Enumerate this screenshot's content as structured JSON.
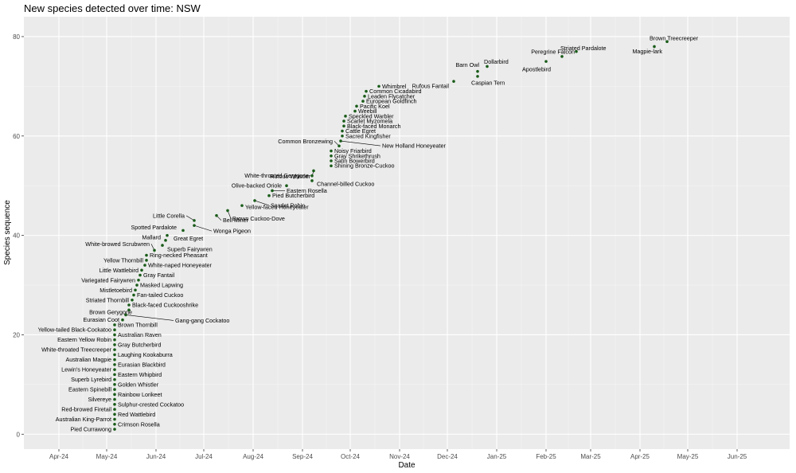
{
  "chart_data": {
    "type": "scatter",
    "title": "New species detected over time: NSW",
    "xlabel": "Date",
    "ylabel": "Species sequence",
    "xlim": [
      "2024-03-10",
      "2025-07-04"
    ],
    "ylim": [
      -3,
      84
    ],
    "x_ticks": [
      {
        "date": "2024-04-01",
        "label": "Apr-24"
      },
      {
        "date": "2024-05-01",
        "label": "May-24"
      },
      {
        "date": "2024-06-01",
        "label": "Jun-24"
      },
      {
        "date": "2024-07-01",
        "label": "Jul-24"
      },
      {
        "date": "2024-08-01",
        "label": "Aug-24"
      },
      {
        "date": "2024-09-01",
        "label": "Sep-24"
      },
      {
        "date": "2024-10-01",
        "label": "Oct-24"
      },
      {
        "date": "2024-11-01",
        "label": "Nov-24"
      },
      {
        "date": "2024-12-01",
        "label": "Dec-24"
      },
      {
        "date": "2025-01-01",
        "label": "Jan-25"
      },
      {
        "date": "2025-02-01",
        "label": "Feb-25"
      },
      {
        "date": "2025-03-01",
        "label": "Mar-25"
      },
      {
        "date": "2025-04-01",
        "label": "Apr-25"
      },
      {
        "date": "2025-05-01",
        "label": "May-25"
      },
      {
        "date": "2025-06-01",
        "label": "Jun-25"
      }
    ],
    "y_ticks": [
      0,
      20,
      40,
      60,
      80
    ],
    "grid": true,
    "point_color": "#1a5c1a",
    "panel_color": "#ebebeb",
    "points": [
      {
        "date": "2024-05-06",
        "y": 1,
        "label": "Pied Currawong"
      },
      {
        "date": "2024-05-06",
        "y": 2,
        "label": "Crimson Rosella"
      },
      {
        "date": "2024-05-06",
        "y": 3,
        "label": "Australian King-Parrot"
      },
      {
        "date": "2024-05-06",
        "y": 4,
        "label": "Red Wattlebird"
      },
      {
        "date": "2024-05-06",
        "y": 5,
        "label": "Red-browed Firetail"
      },
      {
        "date": "2024-05-06",
        "y": 6,
        "label": "Sulphur-crested Cockatoo"
      },
      {
        "date": "2024-05-06",
        "y": 7,
        "label": "Silvereye"
      },
      {
        "date": "2024-05-06",
        "y": 8,
        "label": "Rainbow Lorikeet"
      },
      {
        "date": "2024-05-06",
        "y": 9,
        "label": "Eastern Spinebill"
      },
      {
        "date": "2024-05-06",
        "y": 10,
        "label": "Golden Whistler"
      },
      {
        "date": "2024-05-06",
        "y": 11,
        "label": "Superb Lyrebird"
      },
      {
        "date": "2024-05-06",
        "y": 12,
        "label": "Eastern Whipbird"
      },
      {
        "date": "2024-05-06",
        "y": 13,
        "label": "Lewin's Honeyeater"
      },
      {
        "date": "2024-05-06",
        "y": 14,
        "label": "Eurasian Blackbird"
      },
      {
        "date": "2024-05-06",
        "y": 15,
        "label": "Australian Magpie"
      },
      {
        "date": "2024-05-06",
        "y": 16,
        "label": "Laughing Kookaburra"
      },
      {
        "date": "2024-05-06",
        "y": 17,
        "label": "White-throated Treecreeper"
      },
      {
        "date": "2024-05-06",
        "y": 18,
        "label": "Gray Butcherbird"
      },
      {
        "date": "2024-05-06",
        "y": 19,
        "label": "Eastern Yellow Robin"
      },
      {
        "date": "2024-05-06",
        "y": 20,
        "label": "Australian Raven"
      },
      {
        "date": "2024-05-06",
        "y": 21,
        "label": "Yellow-tailed Black-Cockatoo"
      },
      {
        "date": "2024-05-06",
        "y": 22,
        "label": "Brown Thornbill"
      },
      {
        "date": "2024-05-11",
        "y": 23,
        "label": "Eurasian Coot"
      },
      {
        "date": "2024-05-13",
        "y": 24,
        "label": "Gang-gang Cockatoo"
      },
      {
        "date": "2024-05-15",
        "y": 25,
        "label": "Brown Gerygone"
      },
      {
        "date": "2024-05-15",
        "y": 26,
        "label": "Black-faced Cuckooshrike"
      },
      {
        "date": "2024-05-17",
        "y": 27,
        "label": "Striated Thornbill"
      },
      {
        "date": "2024-05-18",
        "y": 28,
        "label": "Fan-tailed Cuckoo"
      },
      {
        "date": "2024-05-19",
        "y": 29,
        "label": "Mistletoebird"
      },
      {
        "date": "2024-05-20",
        "y": 30,
        "label": "Masked Lapwing"
      },
      {
        "date": "2024-05-21",
        "y": 31,
        "label": "Variegated Fairywren"
      },
      {
        "date": "2024-05-22",
        "y": 32,
        "label": "Gray Fantail"
      },
      {
        "date": "2024-05-23",
        "y": 33,
        "label": "Little Wattlebird"
      },
      {
        "date": "2024-05-25",
        "y": 34,
        "label": "White-naped Honeyeater"
      },
      {
        "date": "2024-05-26",
        "y": 35,
        "label": "Yellow Thornbill"
      },
      {
        "date": "2024-05-26",
        "y": 36,
        "label": "Ring-necked Pheasant"
      },
      {
        "date": "2024-05-31",
        "y": 37,
        "label": "White-browed Scrubwren"
      },
      {
        "date": "2024-06-05",
        "y": 38,
        "label": "Superb Fairywren"
      },
      {
        "date": "2024-06-07",
        "y": 39,
        "label": "Mallard"
      },
      {
        "date": "2024-06-08",
        "y": 40,
        "label": "Great Egret"
      },
      {
        "date": "2024-06-18",
        "y": 41,
        "label": "Spotted Pardalote"
      },
      {
        "date": "2024-06-25",
        "y": 42,
        "label": "Wonga Pigeon"
      },
      {
        "date": "2024-06-25",
        "y": 43,
        "label": "Little Corella"
      },
      {
        "date": "2024-07-09",
        "y": 44,
        "label": "Bell Miner"
      },
      {
        "date": "2024-07-16",
        "y": 45,
        "label": "Brown Cuckoo-Dove"
      },
      {
        "date": "2024-07-25",
        "y": 46,
        "label": "Yellow-faced Honeyeater"
      },
      {
        "date": "2024-08-02",
        "y": 47,
        "label": "Scarlet Robin"
      },
      {
        "date": "2024-08-11",
        "y": 48,
        "label": "Pied Butcherbird"
      },
      {
        "date": "2024-08-13",
        "y": 49,
        "label": "Eastern Rosella"
      },
      {
        "date": "2024-08-22",
        "y": 50,
        "label": "Olive-backed Oriole"
      },
      {
        "date": "2024-09-07",
        "y": 51,
        "label": "Channel-billed Cuckoo"
      },
      {
        "date": "2024-09-07",
        "y": 52,
        "label": "White-throated Gerygone"
      },
      {
        "date": "2024-09-08",
        "y": 53,
        "label": "Rufous Whistler"
      },
      {
        "date": "2024-09-19",
        "y": 54,
        "label": "Shining Bronze-Cuckoo"
      },
      {
        "date": "2024-09-19",
        "y": 55,
        "label": "Satin Bowerbird"
      },
      {
        "date": "2024-09-19",
        "y": 56,
        "label": "Gray Shrikethrush"
      },
      {
        "date": "2024-09-19",
        "y": 57,
        "label": "Noisy Friarbird"
      },
      {
        "date": "2024-09-24",
        "y": 58,
        "label": "Common Bronzewing"
      },
      {
        "date": "2024-09-25",
        "y": 59,
        "label": "New Holland Honeyeater"
      },
      {
        "date": "2024-09-26",
        "y": 60,
        "label": "Sacred Kingfisher"
      },
      {
        "date": "2024-09-26",
        "y": 61,
        "label": "Cattle Egret"
      },
      {
        "date": "2024-09-27",
        "y": 62,
        "label": "Black-faced Monarch"
      },
      {
        "date": "2024-09-27",
        "y": 63,
        "label": "Scarlet Myzomela"
      },
      {
        "date": "2024-09-28",
        "y": 64,
        "label": "Speckled Warbler"
      },
      {
        "date": "2024-10-04",
        "y": 65,
        "label": "Weebill"
      },
      {
        "date": "2024-10-05",
        "y": 66,
        "label": "Pacific Koel"
      },
      {
        "date": "2024-10-09",
        "y": 67,
        "label": "European Goldfinch"
      },
      {
        "date": "2024-10-10",
        "y": 68,
        "label": "Leaden Flycatcher"
      },
      {
        "date": "2024-10-11",
        "y": 69,
        "label": "Common Cicadabird"
      },
      {
        "date": "2024-10-19",
        "y": 70,
        "label": "Whimbrel"
      },
      {
        "date": "2024-12-05",
        "y": 71,
        "label": "Rufous Fantail"
      },
      {
        "date": "2024-12-20",
        "y": 72,
        "label": "Caspian Tern"
      },
      {
        "date": "2024-12-20",
        "y": 73,
        "label": "Barn Owl"
      },
      {
        "date": "2024-12-26",
        "y": 74,
        "label": "Dollarbird"
      },
      {
        "date": "2025-02-01",
        "y": 75,
        "label": "Apostlebird"
      },
      {
        "date": "2025-02-11",
        "y": 76,
        "label": "Peregrine Falcon"
      },
      {
        "date": "2025-02-20",
        "y": 77,
        "label": "Striated Pardalote"
      },
      {
        "date": "2025-04-10",
        "y": 78,
        "label": "Magpie-lark"
      },
      {
        "date": "2025-04-18",
        "y": 79,
        "label": "Brown Treecreeper"
      }
    ]
  }
}
